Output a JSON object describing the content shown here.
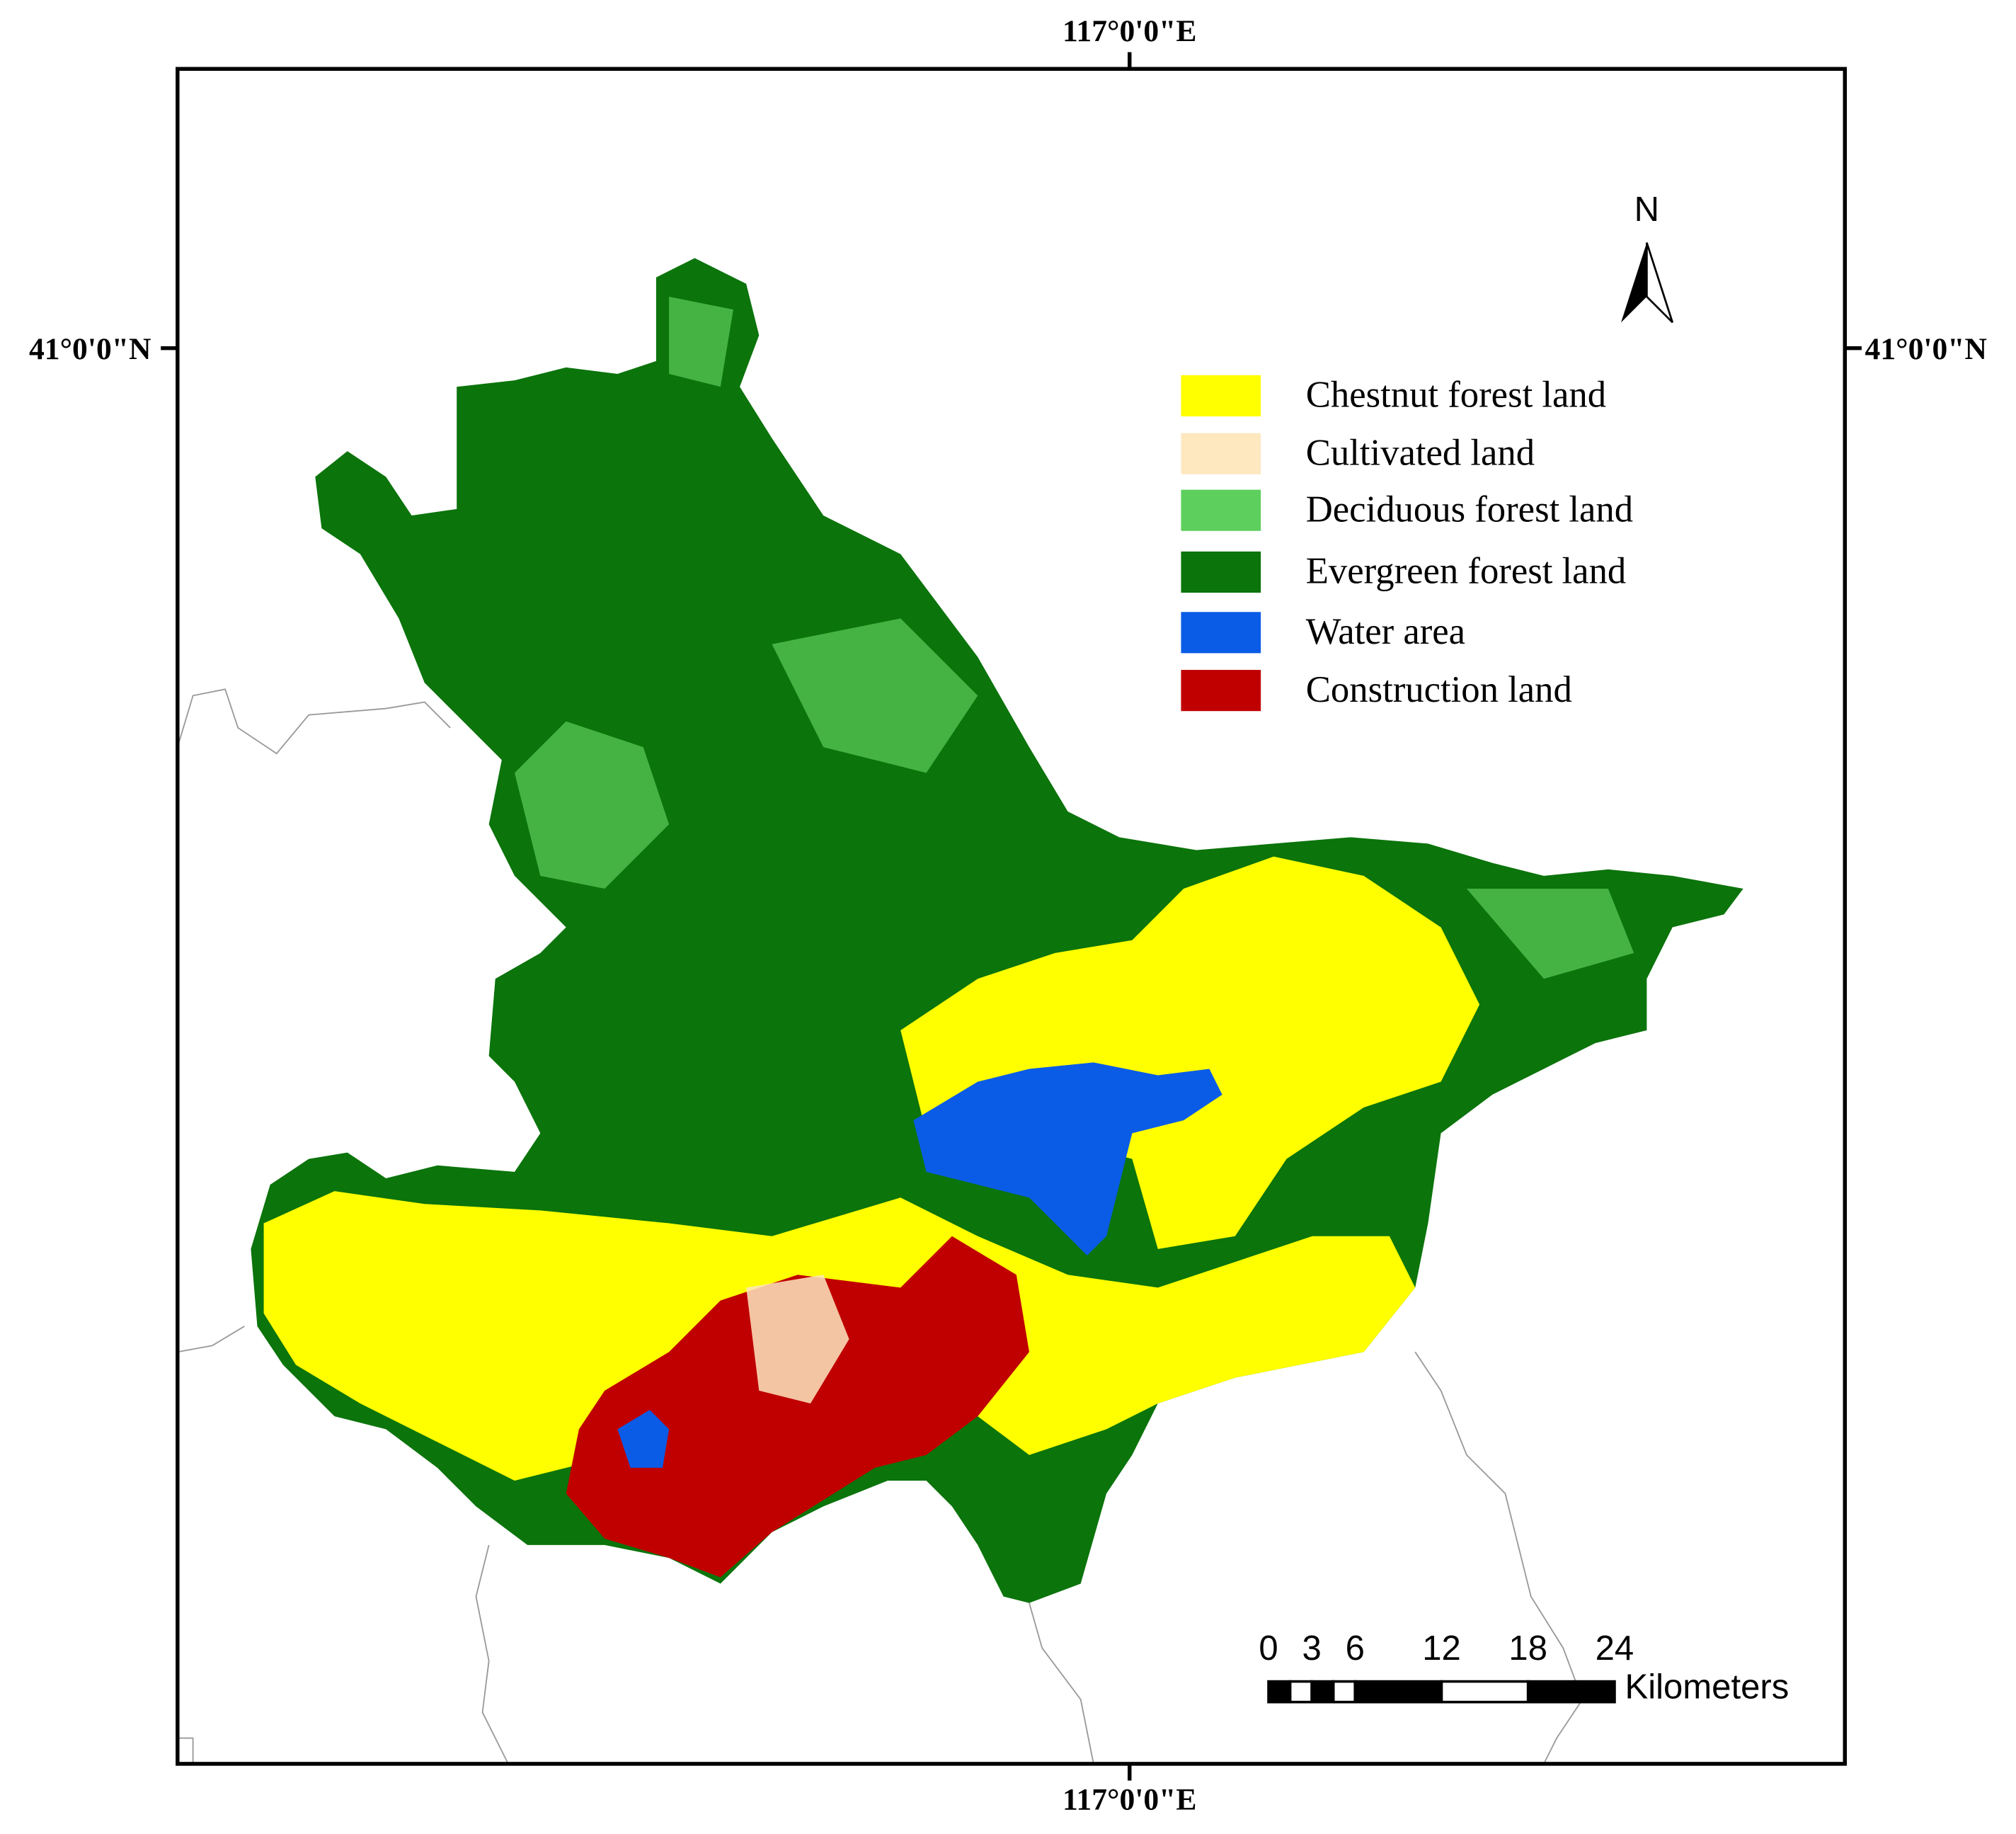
{
  "map": {
    "graticule": {
      "top": "117°0'0\"E",
      "bottom": "117°0'0\"E",
      "left": "41°0'0\"N",
      "right": "41°0'0\"N"
    },
    "north_arrow": "N",
    "legend": [
      {
        "label": "Chestnut forest land",
        "color": "#ffff00"
      },
      {
        "label": "Cultivated land",
        "color": "#fde8c0"
      },
      {
        "label": "Deciduous forest land",
        "color": "#5dcf5d"
      },
      {
        "label": "Evergreen forest land",
        "color": "#0b740b"
      },
      {
        "label": "Water area",
        "color": "#0a5ce6"
      },
      {
        "label": "Construction land",
        "color": "#c00000"
      }
    ],
    "scale_bar": {
      "ticks": [
        0,
        3,
        6,
        12,
        18,
        24
      ],
      "unit": "Kilometers"
    }
  }
}
